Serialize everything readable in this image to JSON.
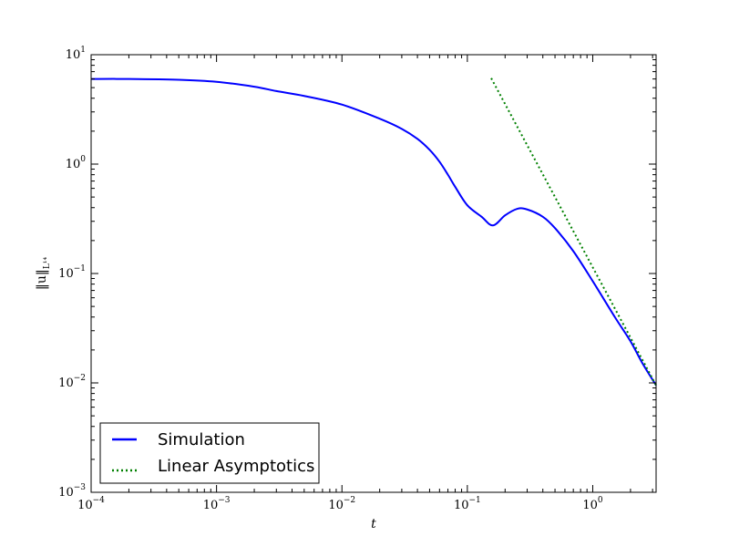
{
  "chart_data": {
    "type": "line",
    "title": "",
    "xlabel": "t",
    "ylabel": "‖u‖",
    "ylabel_sub": "L¹⁴",
    "xscale": "log",
    "yscale": "log",
    "xlim": [
      0.0001,
      3.2
    ],
    "ylim": [
      0.001,
      10
    ],
    "grid": false,
    "legend_position": "lower-left",
    "x_ticks": [
      {
        "base": "10",
        "exp": "−4"
      },
      {
        "base": "10",
        "exp": "−3"
      },
      {
        "base": "10",
        "exp": "−2"
      },
      {
        "base": "10",
        "exp": "−1"
      },
      {
        "base": "10",
        "exp": "0"
      }
    ],
    "y_ticks": [
      {
        "base": "10",
        "exp": "−3"
      },
      {
        "base": "10",
        "exp": "−2"
      },
      {
        "base": "10",
        "exp": "−1"
      },
      {
        "base": "10",
        "exp": "0"
      },
      {
        "base": "10",
        "exp": "1"
      }
    ],
    "series": [
      {
        "name": "Simulation",
        "color": "#0000ff",
        "style": "solid",
        "x": [
          0.0001,
          0.0002,
          0.0005,
          0.001,
          0.002,
          0.003,
          0.005,
          0.01,
          0.02,
          0.03,
          0.04,
          0.05,
          0.06,
          0.07,
          0.08,
          0.1,
          0.13,
          0.16,
          0.2,
          0.25,
          0.3,
          0.4,
          0.5,
          0.7,
          1.0,
          1.5,
          2.0,
          2.5,
          3.2
        ],
        "y": [
          6.0,
          6.0,
          5.9,
          5.65,
          5.1,
          4.65,
          4.2,
          3.5,
          2.6,
          2.1,
          1.7,
          1.35,
          1.05,
          0.8,
          0.62,
          0.42,
          0.33,
          0.275,
          0.34,
          0.39,
          0.385,
          0.33,
          0.26,
          0.16,
          0.085,
          0.04,
          0.024,
          0.015,
          0.0095
        ]
      },
      {
        "name": "Linear Asymptotics",
        "color": "#008000",
        "style": "dotted",
        "x": [
          0.155,
          3.2
        ],
        "y": [
          6.1,
          0.0095
        ]
      }
    ]
  }
}
